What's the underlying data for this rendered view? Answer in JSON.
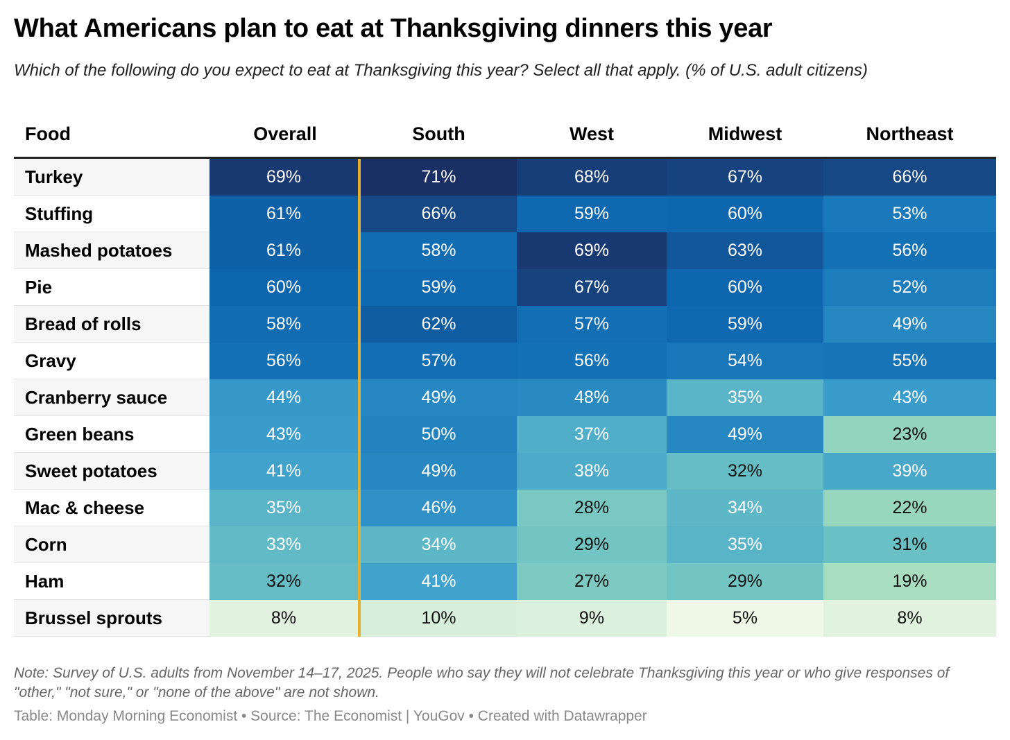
{
  "chart_data": {
    "type": "heatmap",
    "title": "What Americans plan to eat at Thanksgiving dinners this year",
    "subtitle": "Which of the following do you expect to eat at Thanksgiving this year? Select all that apply. (% of U.S. adult citizens)",
    "columns": [
      "Food",
      "Overall",
      "South",
      "West",
      "Midwest",
      "Northeast"
    ],
    "rows": [
      {
        "food": "Turkey",
        "values": [
          69,
          71,
          68,
          67,
          66
        ]
      },
      {
        "food": "Stuffing",
        "values": [
          61,
          66,
          59,
          60,
          53
        ]
      },
      {
        "food": "Mashed potatoes",
        "values": [
          61,
          58,
          69,
          63,
          56
        ]
      },
      {
        "food": "Pie",
        "values": [
          60,
          59,
          67,
          60,
          52
        ]
      },
      {
        "food": "Bread of rolls",
        "values": [
          58,
          62,
          57,
          59,
          49
        ]
      },
      {
        "food": "Gravy",
        "values": [
          56,
          57,
          56,
          54,
          55
        ]
      },
      {
        "food": "Cranberry sauce",
        "values": [
          44,
          49,
          48,
          35,
          43
        ]
      },
      {
        "food": "Green beans",
        "values": [
          43,
          50,
          37,
          49,
          23
        ]
      },
      {
        "food": "Sweet potatoes",
        "values": [
          41,
          49,
          38,
          32,
          39
        ]
      },
      {
        "food": "Mac & cheese",
        "values": [
          35,
          46,
          28,
          34,
          22
        ]
      },
      {
        "food": "Corn",
        "values": [
          33,
          34,
          29,
          35,
          31
        ]
      },
      {
        "food": "Ham",
        "values": [
          32,
          41,
          27,
          29,
          19
        ]
      },
      {
        "food": "Brussel sprouts",
        "values": [
          8,
          10,
          9,
          5,
          8
        ]
      }
    ],
    "unit": "%",
    "separator_color": "#e8b02a",
    "color_scale": [
      "#f0f8e8",
      "#a3dbbd",
      "#6ec3c4",
      "#3d9fcc",
      "#1c7cbc",
      "#0e66ae",
      "#1a2f63"
    ]
  },
  "note": "Note: Survey of U.S. adults from November 14–17, 2025. People who say they will not celebrate Thanksgiving this year or who give responses of \"other,\" \"not sure,\" or \"none of the above\" are not shown.",
  "footer": "Table: Monday Morning Economist • Source: The Economist | YouGov • Created with Datawrapper"
}
